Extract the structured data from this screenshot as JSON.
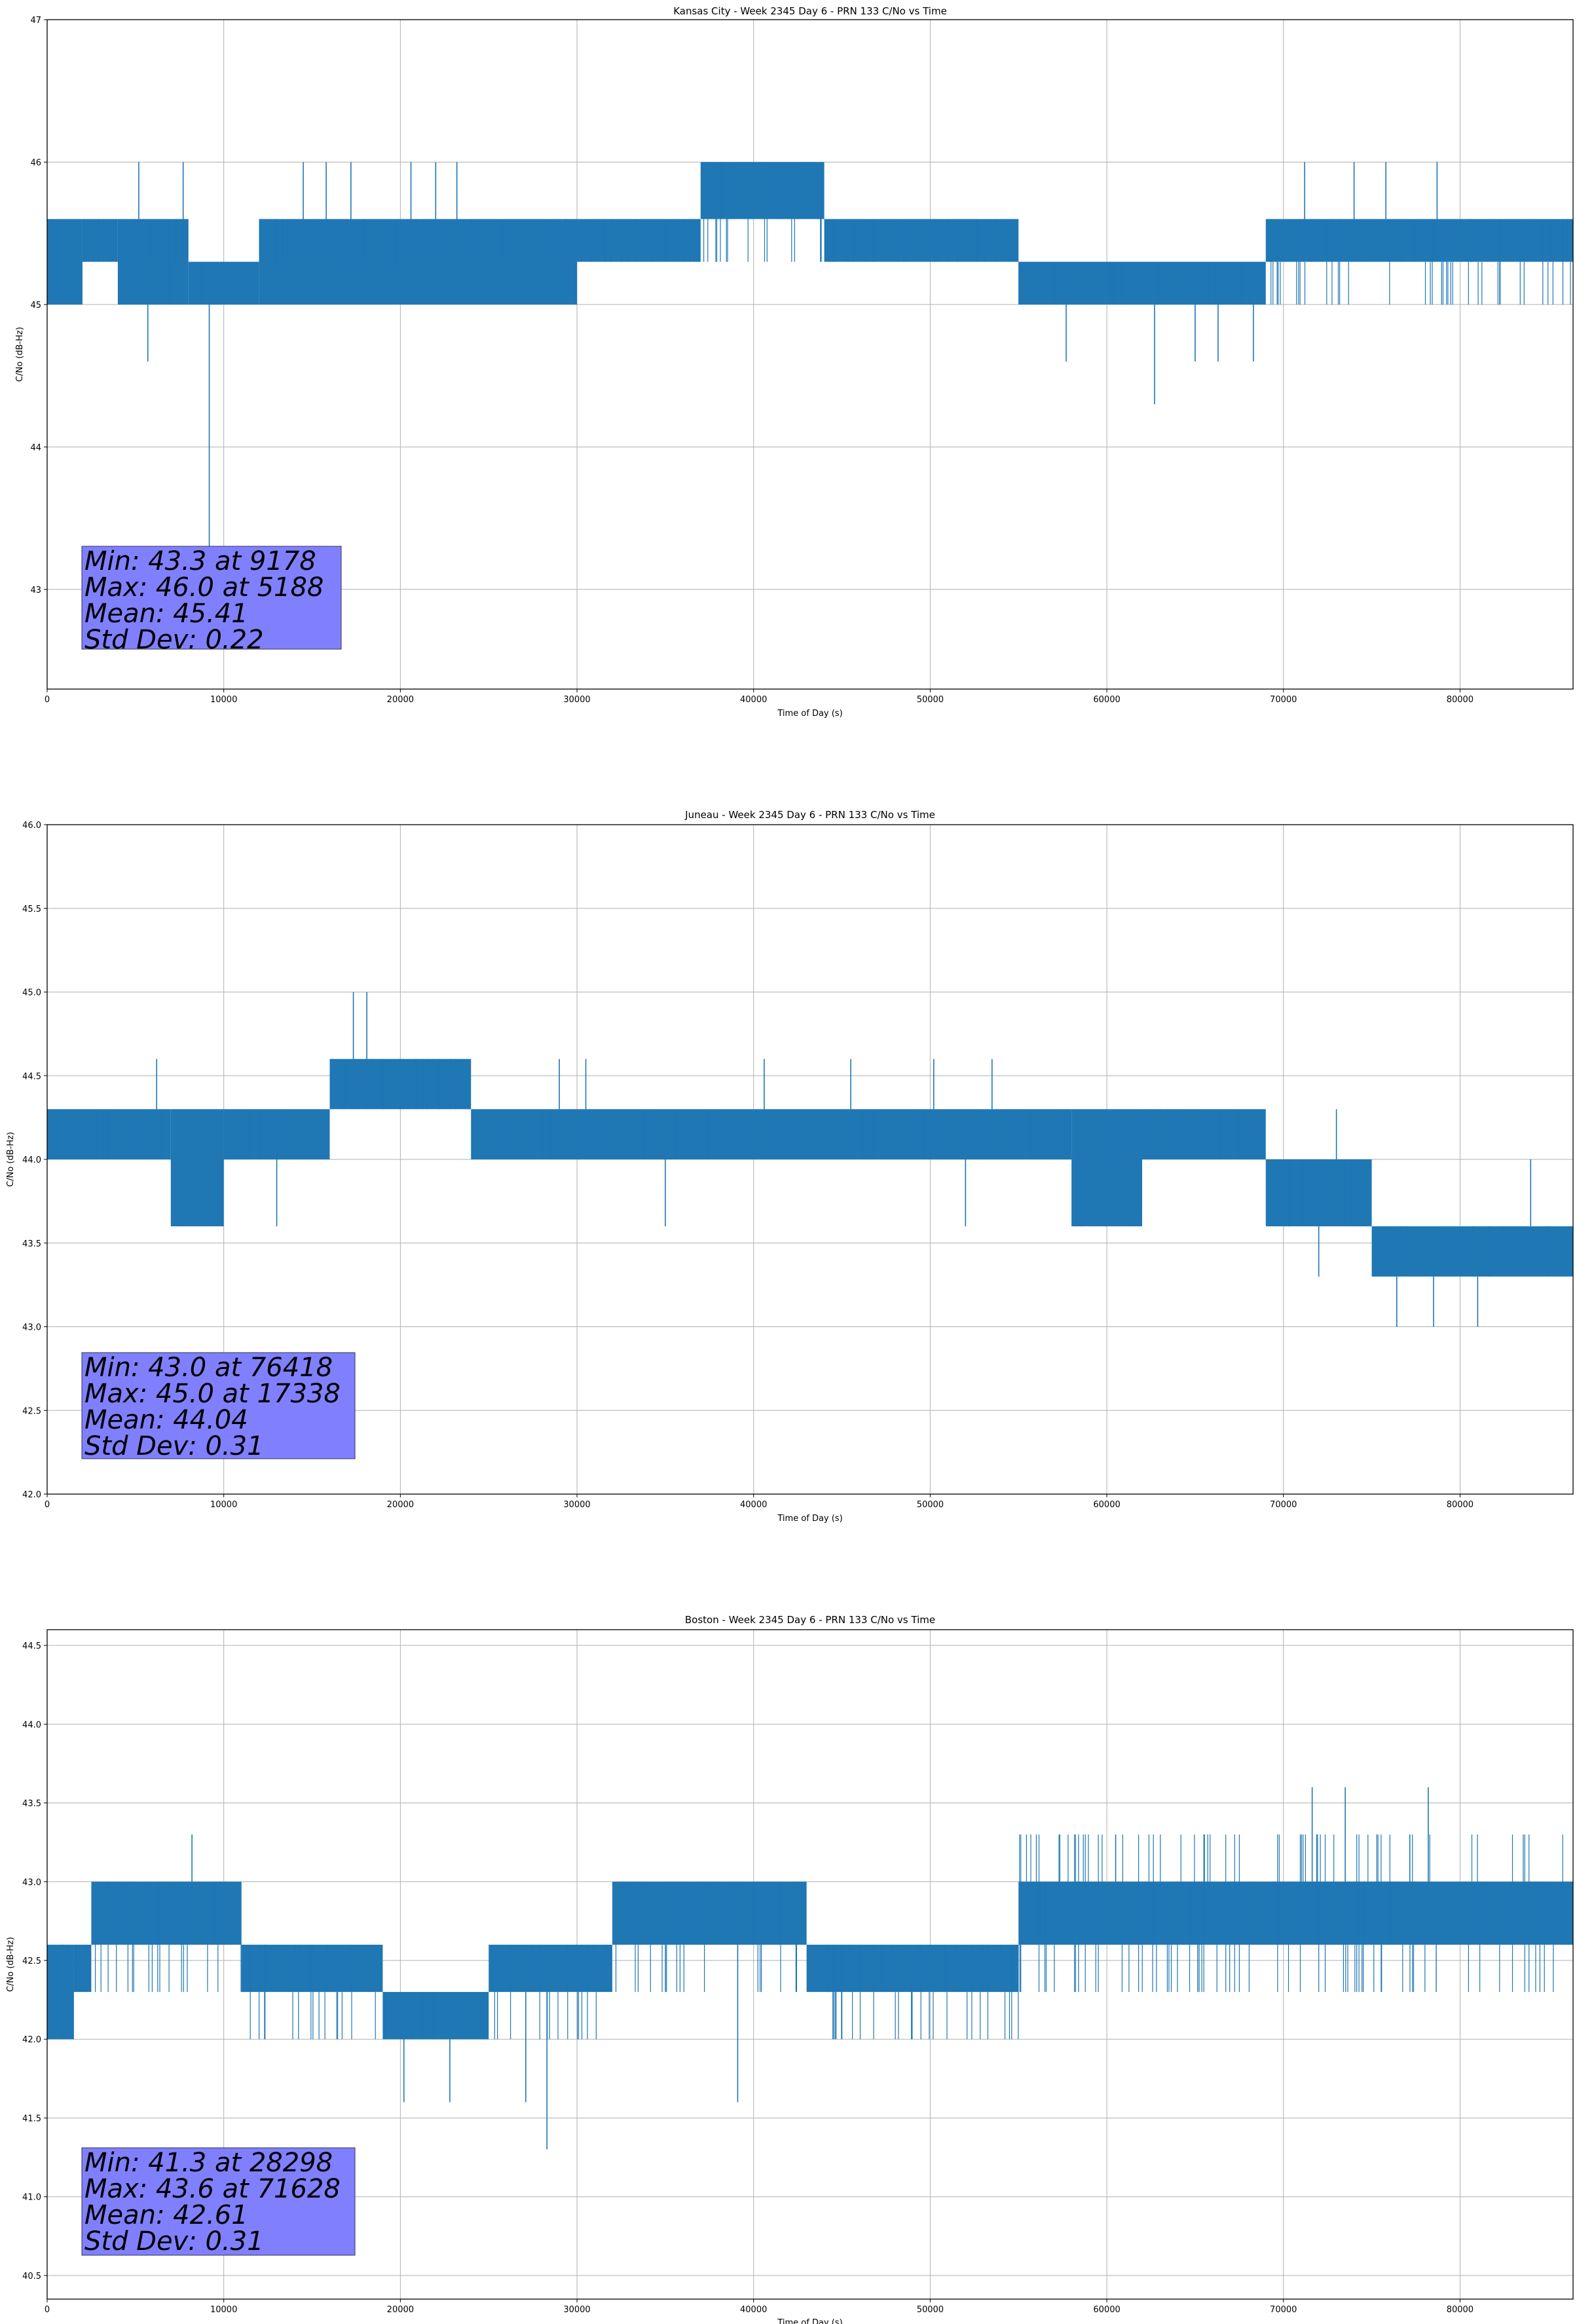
{
  "figure": {
    "series_color": "#1f77b4",
    "stats_box_color": "#8080ff"
  },
  "chart_data": [
    {
      "type": "line",
      "title": "Kansas City - Week 2345 Day 6 - PRN 133 C/No vs Time",
      "xlabel": "Time of Day (s)",
      "ylabel": "C/No (dB-Hz)",
      "xlim": [
        0,
        86400
      ],
      "ylim": [
        42.3,
        47
      ],
      "xticks": [
        0,
        10000,
        20000,
        30000,
        40000,
        50000,
        60000,
        70000,
        80000
      ],
      "yticks": [
        43,
        44,
        45,
        46,
        47
      ],
      "ytick_format": 0,
      "grid": true,
      "series": [
        {
          "name": "PRN 133 C/No",
          "segments": [
            {
              "x": [
                0,
                2000
              ],
              "levels": [
                45.3,
                45.6
              ],
              "lo": 45.0,
              "hi": 45.6
            },
            {
              "x": [
                2000,
                4000
              ],
              "levels": [
                45.3,
                45.6
              ],
              "lo": 45.3,
              "hi": 45.6
            },
            {
              "x": [
                4000,
                8000
              ],
              "levels": [
                45.0,
                45.3,
                45.6
              ],
              "lo": 45.0,
              "hi": 45.6
            },
            {
              "x": [
                8000,
                12000
              ],
              "levels": [
                45.0,
                45.3
              ],
              "lo": 45.0,
              "hi": 45.3
            },
            {
              "x": [
                12000,
                30000
              ],
              "levels": [
                45.3,
                45.6
              ],
              "lo": 45.0,
              "hi": 45.6
            },
            {
              "x": [
                30000,
                37000
              ],
              "levels": [
                45.3,
                45.6
              ],
              "lo": 45.3,
              "hi": 45.6
            },
            {
              "x": [
                37000,
                44000
              ],
              "levels": [
                45.3,
                45.6,
                46.0
              ],
              "lo": 45.6,
              "hi": 46.0
            },
            {
              "x": [
                44000,
                55000
              ],
              "levels": [
                45.3,
                45.6
              ],
              "lo": 45.3,
              "hi": 45.6
            },
            {
              "x": [
                55000,
                69000
              ],
              "levels": [
                45.0,
                45.3
              ],
              "lo": 45.0,
              "hi": 45.3
            },
            {
              "x": [
                69000,
                86400
              ],
              "levels": [
                45.0,
                45.3,
                45.6
              ],
              "lo": 45.3,
              "hi": 45.6
            }
          ],
          "spikes": [
            {
              "x": 5188,
              "y": 46.0
            },
            {
              "x": 7700,
              "y": 46.0
            },
            {
              "x": 14500,
              "y": 46.0
            },
            {
              "x": 15800,
              "y": 46.0
            },
            {
              "x": 17200,
              "y": 46.0
            },
            {
              "x": 20600,
              "y": 46.0
            },
            {
              "x": 22000,
              "y": 46.0
            },
            {
              "x": 23200,
              "y": 46.0
            },
            {
              "x": 5700,
              "y": 44.6
            },
            {
              "x": 9178,
              "y": 43.3
            },
            {
              "x": 57700,
              "y": 44.6
            },
            {
              "x": 62700,
              "y": 44.3
            },
            {
              "x": 65000,
              "y": 44.6
            },
            {
              "x": 66300,
              "y": 44.6
            },
            {
              "x": 68300,
              "y": 44.6
            },
            {
              "x": 71200,
              "y": 46.0
            },
            {
              "x": 74000,
              "y": 46.0
            },
            {
              "x": 75800,
              "y": 46.0
            },
            {
              "x": 78700,
              "y": 46.0
            }
          ]
        }
      ],
      "stats": [
        "Min: 43.3 at 9178",
        "Max: 46.0 at 5188",
        "Mean: 45.41",
        "Std Dev: 0.22"
      ]
    },
    {
      "type": "line",
      "title": "Juneau - Week 2345 Day 6 - PRN 133 C/No vs Time",
      "xlabel": "Time of Day (s)",
      "ylabel": "C/No (dB-Hz)",
      "xlim": [
        0,
        86400
      ],
      "ylim": [
        42.0,
        46.0
      ],
      "xticks": [
        0,
        10000,
        20000,
        30000,
        40000,
        50000,
        60000,
        70000,
        80000
      ],
      "yticks": [
        42.0,
        42.5,
        43.0,
        43.5,
        44.0,
        44.5,
        45.0,
        45.5,
        46.0
      ],
      "ytick_format": 1,
      "grid": true,
      "series": [
        {
          "name": "PRN 133 C/No",
          "segments": [
            {
              "x": [
                0,
                7000
              ],
              "levels": [
                44.0,
                44.3
              ],
              "lo": 44.0,
              "hi": 44.3
            },
            {
              "x": [
                7000,
                10000
              ],
              "levels": [
                43.6,
                44.0,
                44.3
              ],
              "lo": 43.6,
              "hi": 44.3
            },
            {
              "x": [
                10000,
                16000
              ],
              "levels": [
                44.0,
                44.3
              ],
              "lo": 44.0,
              "hi": 44.3
            },
            {
              "x": [
                16000,
                24000
              ],
              "levels": [
                44.3,
                44.6
              ],
              "lo": 44.3,
              "hi": 44.6
            },
            {
              "x": [
                24000,
                58000
              ],
              "levels": [
                44.0,
                44.3
              ],
              "lo": 44.0,
              "hi": 44.3
            },
            {
              "x": [
                58000,
                62000
              ],
              "levels": [
                43.6,
                44.0,
                44.3
              ],
              "lo": 43.6,
              "hi": 44.3
            },
            {
              "x": [
                62000,
                69000
              ],
              "levels": [
                44.0,
                44.3
              ],
              "lo": 44.0,
              "hi": 44.3
            },
            {
              "x": [
                69000,
                75000
              ],
              "levels": [
                43.6,
                44.0
              ],
              "lo": 43.6,
              "hi": 44.0
            },
            {
              "x": [
                75000,
                86400
              ],
              "levels": [
                43.3,
                43.6
              ],
              "lo": 43.3,
              "hi": 43.6
            }
          ],
          "spikes": [
            {
              "x": 6200,
              "y": 44.6
            },
            {
              "x": 17338,
              "y": 45.0
            },
            {
              "x": 18100,
              "y": 45.0
            },
            {
              "x": 29000,
              "y": 44.6
            },
            {
              "x": 30500,
              "y": 44.6
            },
            {
              "x": 40600,
              "y": 44.6
            },
            {
              "x": 45500,
              "y": 44.6
            },
            {
              "x": 50200,
              "y": 44.6
            },
            {
              "x": 53500,
              "y": 44.6
            },
            {
              "x": 13000,
              "y": 43.6
            },
            {
              "x": 35000,
              "y": 43.6
            },
            {
              "x": 52000,
              "y": 43.6
            },
            {
              "x": 73000,
              "y": 44.3
            },
            {
              "x": 72000,
              "y": 43.3
            },
            {
              "x": 76418,
              "y": 43.0
            },
            {
              "x": 78500,
              "y": 43.0
            },
            {
              "x": 81000,
              "y": 43.0
            },
            {
              "x": 84000,
              "y": 44.0
            }
          ]
        }
      ],
      "stats": [
        "Min: 43.0 at 76418",
        "Max: 45.0 at 17338",
        "Mean: 44.04",
        "Std Dev: 0.31"
      ]
    },
    {
      "type": "line",
      "title": "Boston - Week 2345 Day 6 - PRN 133 C/No vs Time",
      "xlabel": "Time of Day (s)",
      "ylabel": "C/No (dB-Hz)",
      "xlim": [
        0,
        86400
      ],
      "ylim": [
        40.35,
        44.6
      ],
      "xticks": [
        0,
        10000,
        20000,
        30000,
        40000,
        50000,
        60000,
        70000,
        80000
      ],
      "yticks": [
        40.5,
        41.0,
        41.5,
        42.0,
        42.5,
        43.0,
        43.5,
        44.0,
        44.5
      ],
      "ytick_format": 1,
      "grid": true,
      "series": [
        {
          "name": "PRN 133 C/No",
          "segments": [
            {
              "x": [
                0,
                1500
              ],
              "levels": [
                42.0,
                42.3,
                42.6
              ],
              "lo": 42.0,
              "hi": 42.6
            },
            {
              "x": [
                1500,
                2500
              ],
              "levels": [
                42.3,
                42.6
              ],
              "lo": 42.3,
              "hi": 42.6
            },
            {
              "x": [
                2500,
                11000
              ],
              "levels": [
                42.3,
                42.6,
                43.0
              ],
              "lo": 42.6,
              "hi": 43.0
            },
            {
              "x": [
                11000,
                19000
              ],
              "levels": [
                42.0,
                42.3,
                42.6
              ],
              "lo": 42.3,
              "hi": 42.6
            },
            {
              "x": [
                19000,
                25000
              ],
              "levels": [
                42.0,
                42.3
              ],
              "lo": 42.0,
              "hi": 42.3
            },
            {
              "x": [
                25000,
                32000
              ],
              "levels": [
                42.0,
                42.3,
                42.6
              ],
              "lo": 42.3,
              "hi": 42.6
            },
            {
              "x": [
                32000,
                43000
              ],
              "levels": [
                42.3,
                42.6,
                43.0
              ],
              "lo": 42.6,
              "hi": 43.0
            },
            {
              "x": [
                43000,
                55000
              ],
              "levels": [
                42.0,
                42.3,
                42.6
              ],
              "lo": 42.3,
              "hi": 42.6
            },
            {
              "x": [
                55000,
                86400
              ],
              "levels": [
                42.3,
                42.6,
                43.0,
                43.3
              ],
              "lo": 42.6,
              "hi": 43.0
            }
          ],
          "spikes": [
            {
              "x": 8200,
              "y": 43.3
            },
            {
              "x": 20200,
              "y": 41.6
            },
            {
              "x": 22800,
              "y": 41.6
            },
            {
              "x": 27100,
              "y": 41.6
            },
            {
              "x": 28298,
              "y": 41.3
            },
            {
              "x": 39100,
              "y": 41.6
            },
            {
              "x": 71628,
              "y": 43.6
            },
            {
              "x": 73500,
              "y": 43.6
            },
            {
              "x": 78200,
              "y": 43.6
            },
            {
              "x": 60500,
              "y": 43.3
            },
            {
              "x": 65500,
              "y": 43.3
            }
          ]
        }
      ],
      "stats": [
        "Min: 41.3 at 28298",
        "Max: 43.6 at 71628",
        "Mean: 42.61",
        "Std Dev: 0.31"
      ]
    }
  ]
}
